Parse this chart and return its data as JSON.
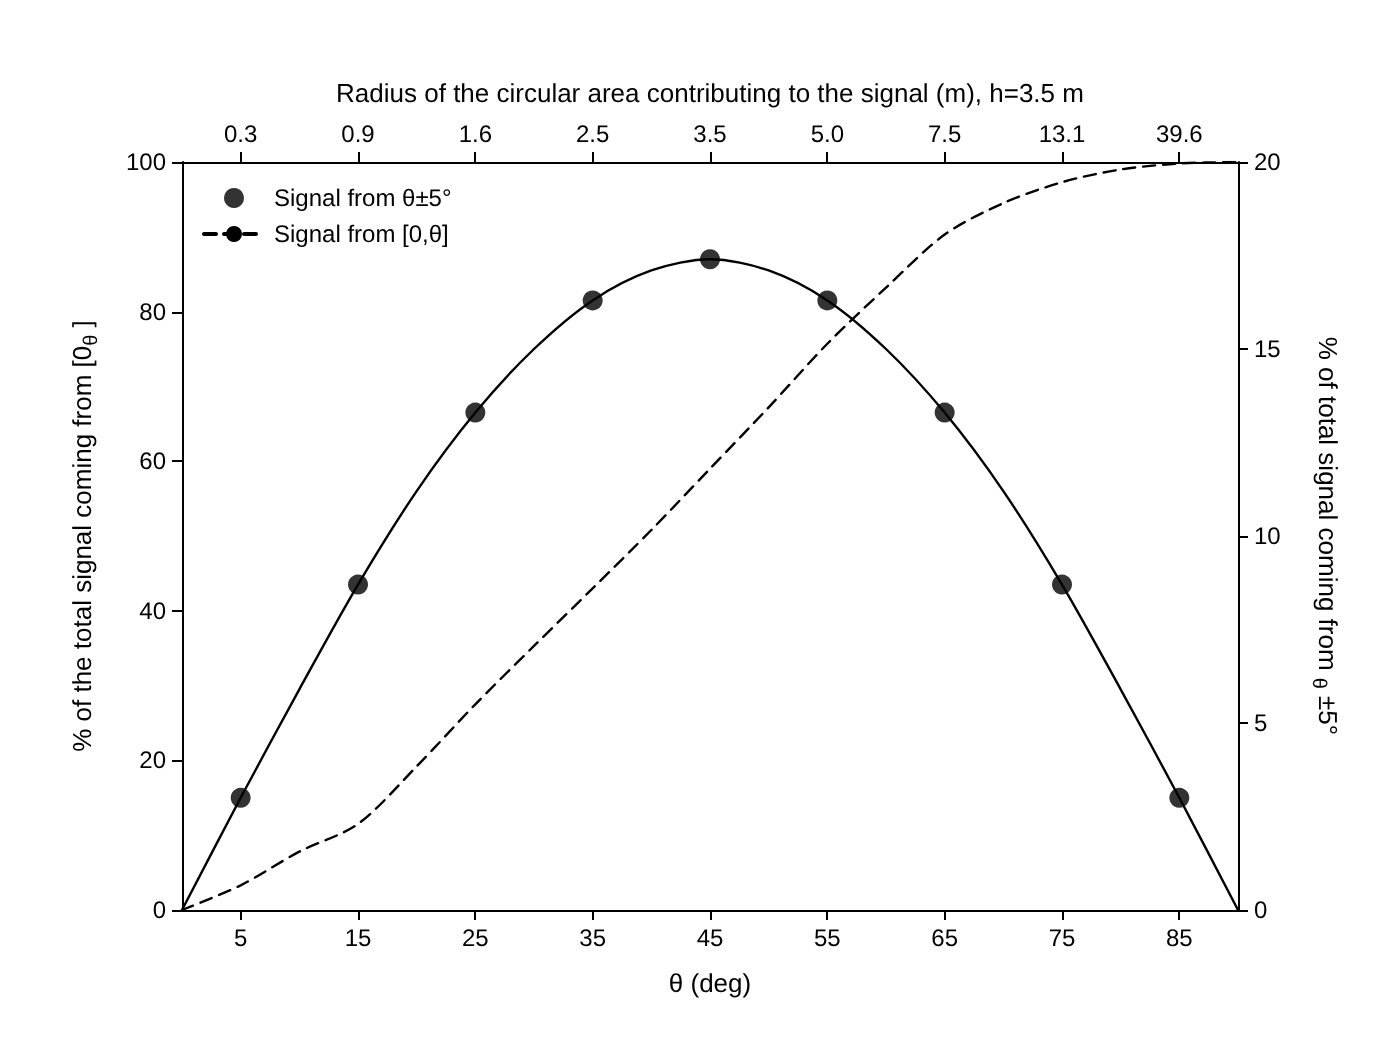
{
  "chart_data": {
    "type": "line",
    "title": "Radius of the circular area contributing to the signal (m), h=3.5 m",
    "xlabel": "θ (deg)",
    "ylabel": "% of the total signal coming from [0$_{θ}$ ]",
    "y2label": "% of total signal coming from $_{θ}$ ±5°",
    "xlim": [
      0,
      90
    ],
    "xticks": [
      5,
      15,
      25,
      35,
      45,
      55,
      65,
      75,
      85
    ],
    "annotations": [
      {
        "text": "0.3",
        "x": 5
      },
      {
        "text": "0.9",
        "x": 15
      },
      {
        "text": "1.6",
        "x": 25
      },
      {
        "text": "2.5",
        "x": 35
      },
      {
        "text": "3.5",
        "x": 45
      },
      {
        "text": "5.0",
        "x": 55
      },
      {
        "text": "7.5",
        "x": 65
      },
      {
        "text": "13.1",
        "x": 75
      },
      {
        "text": "39.6",
        "x": 85
      }
    ],
    "ylim": [
      0,
      100
    ],
    "yticks": [
      0,
      20,
      40,
      60,
      80,
      100
    ],
    "y2lim": [
      0,
      20
    ],
    "y2ticks": [
      0,
      5,
      10,
      15,
      20
    ],
    "grid": false,
    "legend": "top left",
    "series": [
      {
        "axis": "y2",
        "color": "#000000",
        "marker": "none",
        "line_style": "solid",
        "x": [
          0,
          5,
          10,
          15,
          20,
          25,
          30,
          35,
          40,
          45,
          50,
          55,
          60,
          65,
          70,
          75,
          80,
          85,
          90
        ],
        "values": [
          0,
          3.0,
          5.9,
          8.7,
          11.2,
          13.3,
          15.0,
          16.3,
          17.1,
          17.4,
          17.1,
          16.3,
          15.0,
          13.3,
          11.2,
          8.7,
          5.9,
          3.0,
          0
        ]
      },
      {
        "type": "scatter",
        "name": "Signal from θ±5°",
        "axis": "y2",
        "color": "#000000",
        "marker": "circle",
        "x": [
          5,
          15,
          25,
          35,
          45,
          55,
          65,
          75,
          85
        ],
        "values": [
          3.0,
          8.7,
          13.3,
          16.3,
          17.4,
          16.3,
          13.3,
          8.7,
          3.0
        ]
      },
      {
        "name": "Signal from [0,θ]",
        "axis": "y",
        "color": "#000000",
        "marker": "none",
        "line_style": "dashed",
        "x": [
          0,
          5,
          10,
          15,
          20,
          25,
          30,
          35,
          40,
          45,
          50,
          55,
          60,
          65,
          70,
          75,
          80,
          85,
          90
        ],
        "values": [
          0,
          3.3,
          7.8,
          11.5,
          19.2,
          27.5,
          35.3,
          43,
          50.8,
          59,
          67.2,
          75.7,
          83.2,
          90.3,
          94.5,
          97.3,
          99,
          99.8,
          100
        ]
      }
    ]
  }
}
